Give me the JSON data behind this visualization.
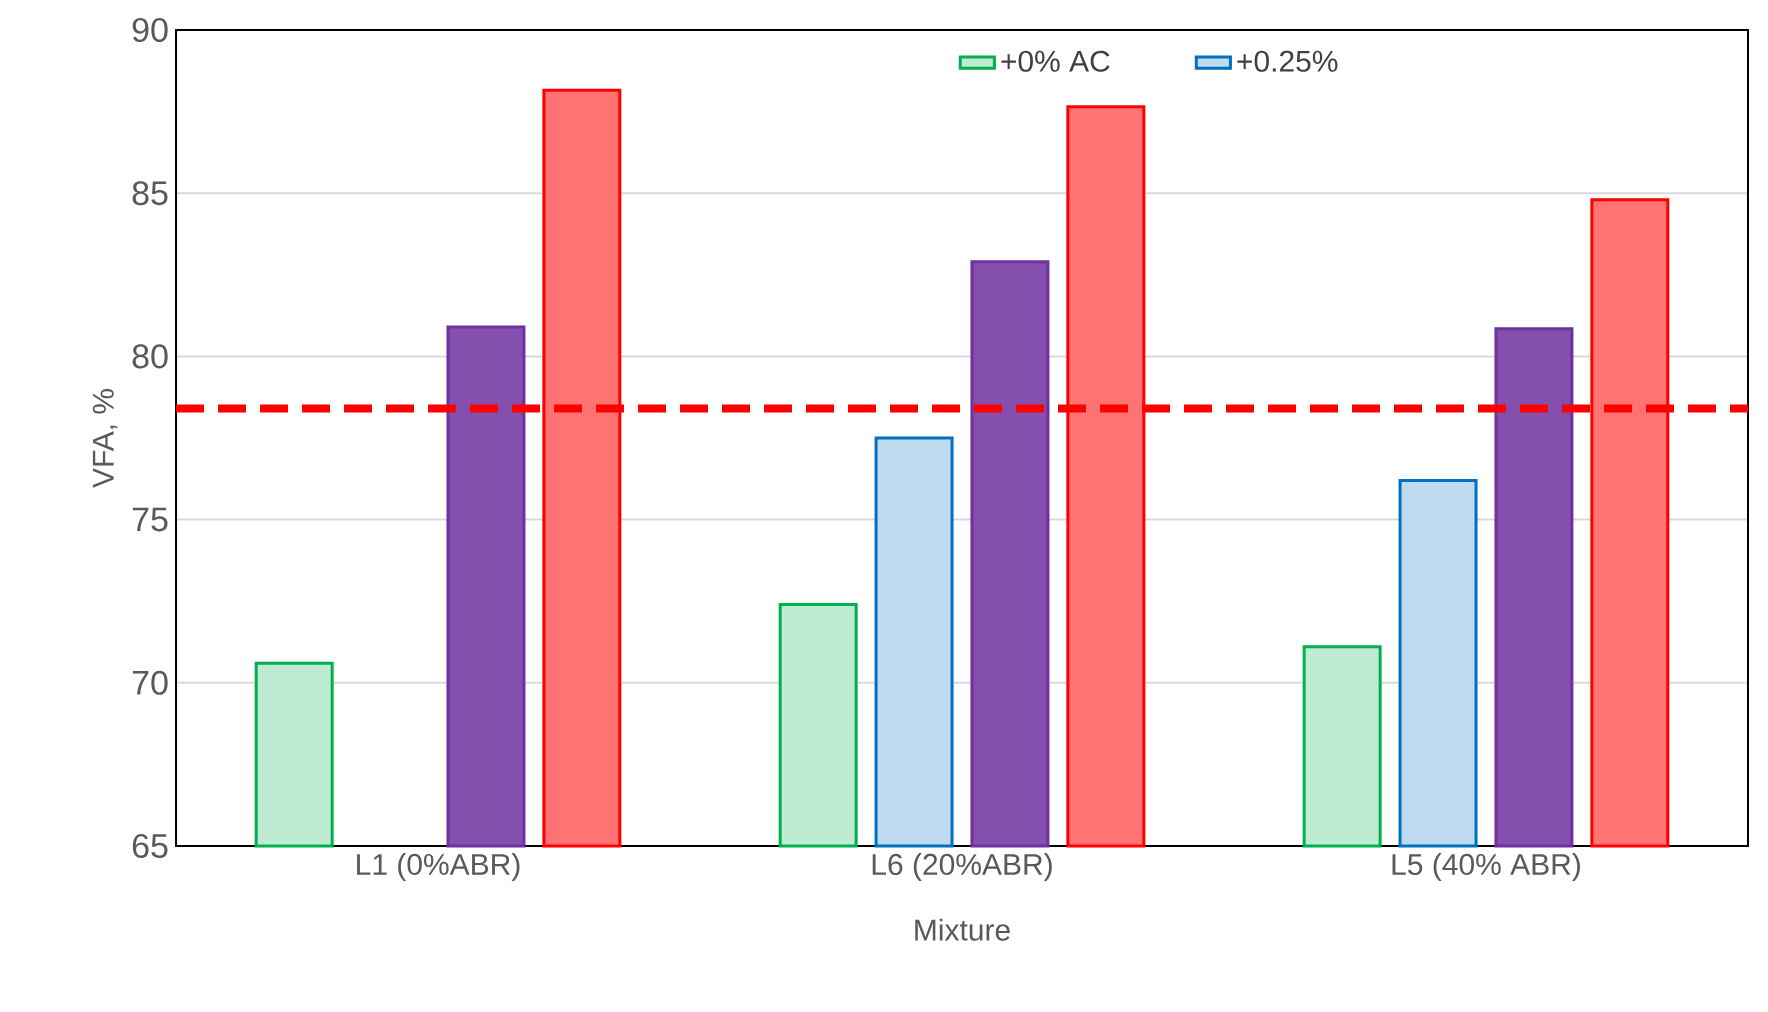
{
  "chart_data": {
    "type": "bar",
    "xlabel": "Mixture",
    "ylabel": "VFA, %",
    "categories": [
      "L1 (0%ABR)",
      "L6 (20%ABR)",
      "L5 (40% ABR)"
    ],
    "series": [
      {
        "name": "+0% AC",
        "color": "#00b050",
        "values": [
          70.6,
          72.4,
          71.1
        ]
      },
      {
        "name": "+0.25%",
        "color": "#0070c0",
        "values": [
          null,
          77.5,
          76.2
        ]
      },
      {
        "color": "#7030a0",
        "values": [
          80.9,
          82.9,
          80.85
        ]
      },
      {
        "color": "#ff0000",
        "values": [
          88.15,
          87.65,
          84.8
        ]
      }
    ],
    "ylim": [
      65,
      90
    ],
    "yticks": [
      65,
      70,
      75,
      80,
      85,
      90
    ],
    "grid": "y",
    "legend": "top",
    "ref_lines": [
      {
        "axis": "y",
        "value": 78.4,
        "color": "#ff0000",
        "line_style": "dashed"
      }
    ]
  }
}
